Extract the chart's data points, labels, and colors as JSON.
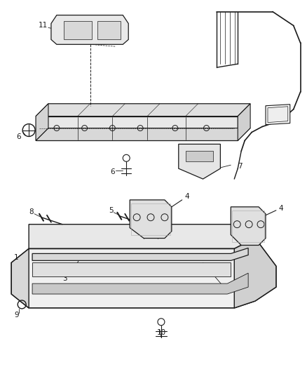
{
  "bg_color": "#ffffff",
  "line_color": "#1a1a1a",
  "fig_w": 4.38,
  "fig_h": 5.33,
  "dpi": 100
}
